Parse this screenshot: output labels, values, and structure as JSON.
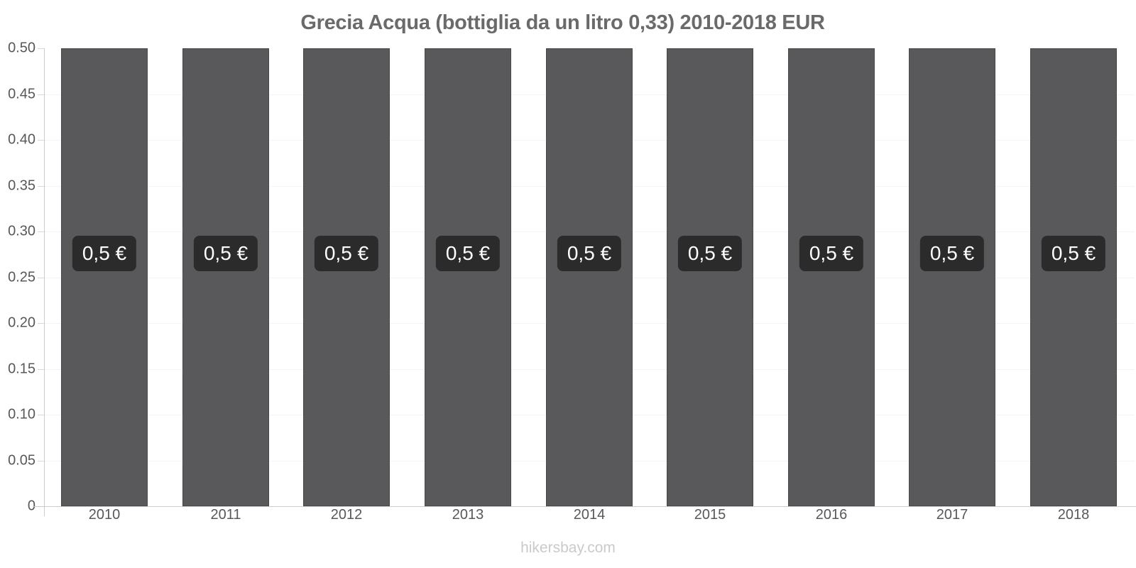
{
  "title": "Grecia Acqua (bottiglia da un litro 0,33) 2010-2018 EUR",
  "watermark": "hikersbay.com",
  "colors": {
    "bar": "#59595b",
    "bar_border": "#48484a",
    "bar_label_box": "#2b2b2b",
    "bar_label_text": "#ffffff",
    "title_text": "#6a6a6a",
    "axis_line": "#cccccc",
    "tick_text": "#58585a",
    "gridline": "#f4f4f4",
    "watermark_text": "#cacaca",
    "background": "#ffffff"
  },
  "chart_data": {
    "type": "bar",
    "title": "Grecia Acqua (bottiglia da un litro 0,33) 2010-2018 EUR",
    "categories": [
      "2010",
      "2011",
      "2012",
      "2013",
      "2014",
      "2015",
      "2016",
      "2017",
      "2018"
    ],
    "values": [
      0.5,
      0.5,
      0.5,
      0.5,
      0.5,
      0.5,
      0.5,
      0.5,
      0.5
    ],
    "data_labels": [
      "0,5 €",
      "0,5 €",
      "0,5 €",
      "0,5 €",
      "0,5 €",
      "0,5 €",
      "0,5 €",
      "0,5 €",
      "0,5 €"
    ],
    "xlabel": "",
    "ylabel": "",
    "ylim": [
      0,
      0.5
    ],
    "yticks": [
      {
        "value": 0,
        "label": "0"
      },
      {
        "value": 0.05,
        "label": "0.05"
      },
      {
        "value": 0.1,
        "label": "0.10"
      },
      {
        "value": 0.15,
        "label": "0.15"
      },
      {
        "value": 0.2,
        "label": "0.20"
      },
      {
        "value": 0.25,
        "label": "0.25"
      },
      {
        "value": 0.3,
        "label": "0.30"
      },
      {
        "value": 0.35,
        "label": "0.35"
      },
      {
        "value": 0.4,
        "label": "0.40"
      },
      {
        "value": 0.45,
        "label": "0.45"
      },
      {
        "value": 0.5,
        "label": "0.50"
      }
    ],
    "grid": true,
    "legend": false
  }
}
